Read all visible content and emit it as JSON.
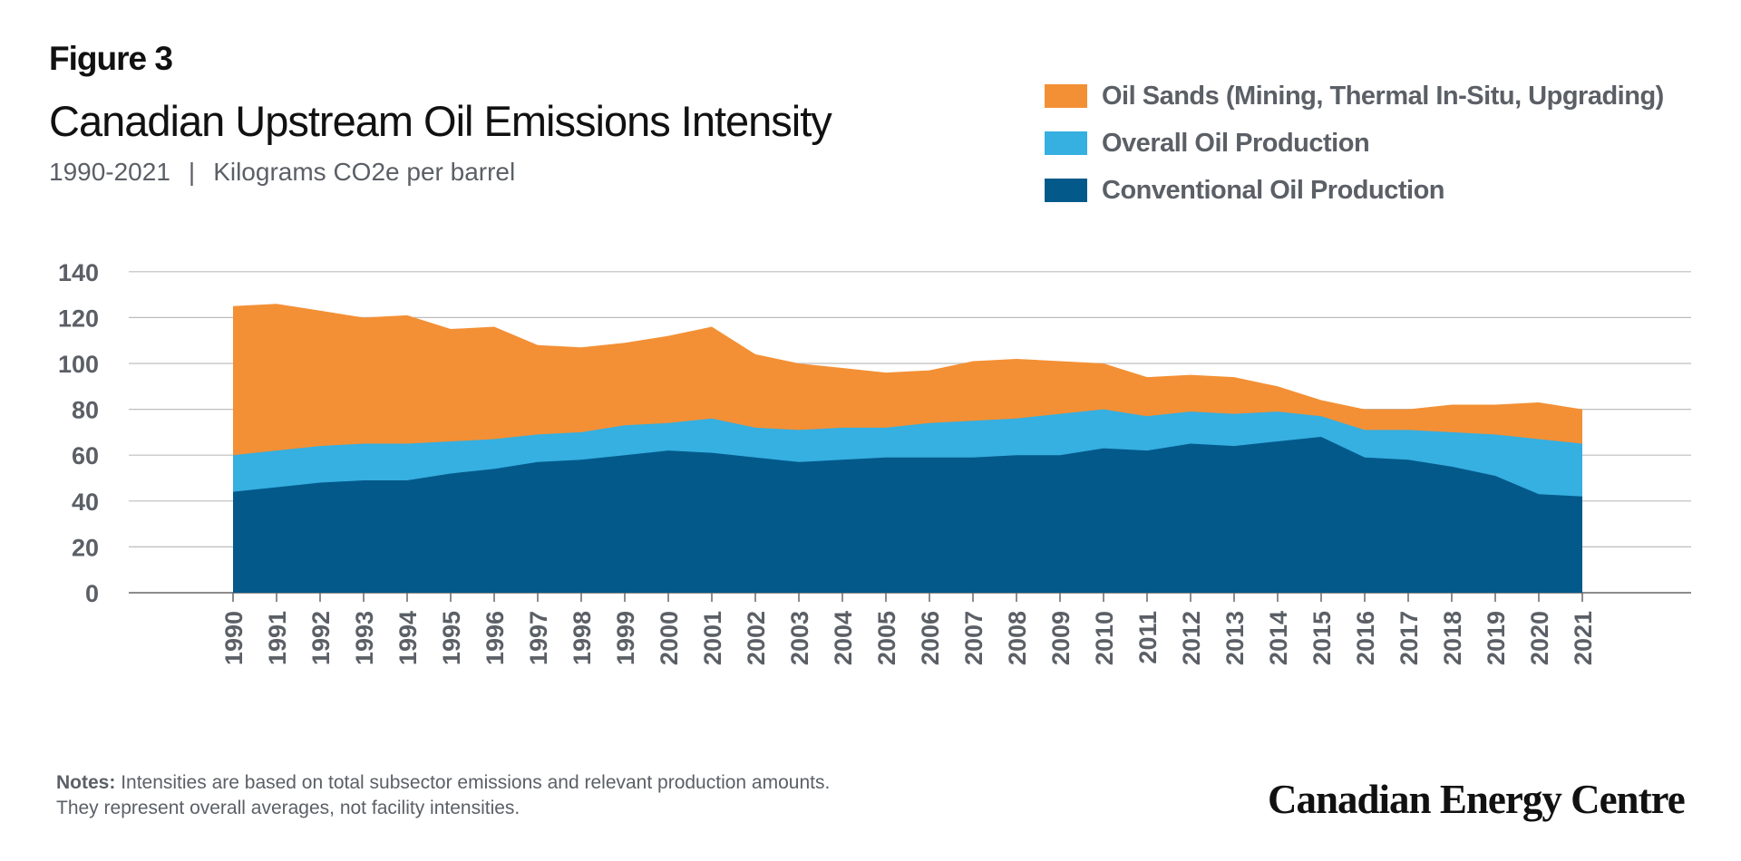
{
  "figure_label": "Figure 3",
  "title": "Canadian Upstream Oil Emissions Intensity",
  "subtitle_years": "1990-2021",
  "subtitle_separator": "|",
  "subtitle_units": "Kilograms CO2e per barrel",
  "legend": [
    {
      "label": "Oil Sands (Mining, Thermal In-Situ, Upgrading)",
      "color": "#f39035"
    },
    {
      "label": "Overall Oil Production",
      "color": "#36afe1"
    },
    {
      "label": "Conventional Oil Production",
      "color": "#035a8a"
    }
  ],
  "notes_label": "Notes:",
  "notes_line1": "Intensities are based on total subsector emissions and relevant production amounts.",
  "notes_line2": "They represent overall averages, not facility intensities.",
  "brand": "Canadian Energy Centre",
  "chart_data": {
    "type": "area",
    "title": "Canadian Upstream Oil Emissions Intensity",
    "ylim": [
      0,
      140
    ],
    "yticks": [
      0,
      20,
      40,
      60,
      80,
      100,
      120,
      140
    ],
    "grid": true,
    "legend_position": "top-right",
    "x": [
      "1990",
      "1991",
      "1992",
      "1993",
      "1994",
      "1995",
      "1996",
      "1997",
      "1998",
      "1999",
      "2000",
      "2001",
      "2002",
      "2003",
      "2004",
      "2005",
      "2006",
      "2007",
      "2008",
      "2009",
      "2010",
      "2011",
      "2012",
      "2013",
      "2014",
      "2015",
      "2016",
      "2017",
      "2018",
      "2019",
      "2020",
      "2021"
    ],
    "series": [
      {
        "name": "Oil Sands (Mining, Thermal In-Situ, Upgrading)",
        "color": "#f39035",
        "values": [
          125,
          126,
          123,
          120,
          121,
          115,
          116,
          108,
          107,
          109,
          112,
          116,
          104,
          100,
          98,
          96,
          97,
          101,
          102,
          101,
          100,
          94,
          95,
          94,
          90,
          84,
          80,
          80,
          82,
          82,
          83,
          80
        ]
      },
      {
        "name": "Overall Oil Production",
        "color": "#36afe1",
        "values": [
          60,
          62,
          64,
          65,
          65,
          66,
          67,
          69,
          70,
          73,
          74,
          76,
          72,
          71,
          72,
          72,
          74,
          75,
          76,
          78,
          80,
          77,
          79,
          78,
          79,
          77,
          71,
          71,
          70,
          69,
          67,
          65
        ]
      },
      {
        "name": "Conventional Oil Production",
        "color": "#035a8a",
        "values": [
          44,
          46,
          48,
          49,
          49,
          52,
          54,
          57,
          58,
          60,
          62,
          61,
          59,
          57,
          58,
          59,
          59,
          59,
          60,
          60,
          63,
          62,
          65,
          64,
          66,
          68,
          59,
          58,
          55,
          51,
          43,
          42
        ]
      }
    ]
  }
}
